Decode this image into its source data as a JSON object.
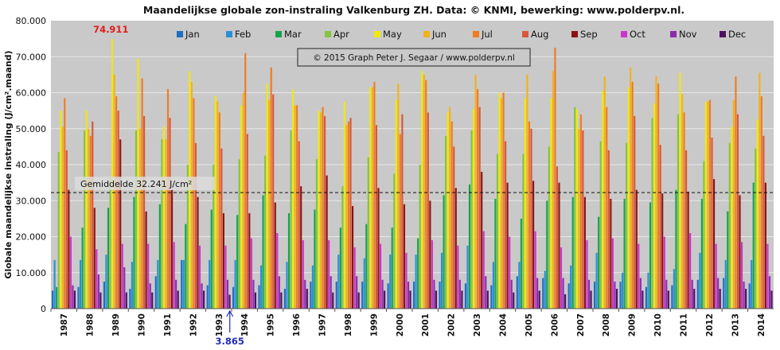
{
  "chart_data": {
    "type": "bar",
    "title": "Maandelijkse  globale  zon-instraling  Valkenburg  ZH.  Data:  © KNMI,  bewerking:  www.polderpv.nl.",
    "ylabel": "Globale maandelijkse instraling (J/cm².maand)",
    "xlabel": "",
    "ylim": [
      0,
      80000
    ],
    "yticks": [
      "0",
      "10.000",
      "20.000",
      "30.000",
      "40.000",
      "50.000",
      "60.000",
      "70.000",
      "80.000"
    ],
    "grid": true,
    "legend_position": "top",
    "copyright": "© 2015 Graph  Peter J. Segaar / www.polderpv.nl",
    "average": {
      "label": "Gemiddelde 32.241 J/cm²",
      "value": 32241
    },
    "max_annotation": {
      "label": "74.911",
      "year": "1989",
      "month": "May",
      "value": 74911
    },
    "min_annotation": {
      "label": "3.865",
      "year": "1993",
      "month": "Dec",
      "value": 3865
    },
    "categories": [
      "1987",
      "1988",
      "1989",
      "1990",
      "1991",
      "1992",
      "1993",
      "1994",
      "1995",
      "1996",
      "1997",
      "1998",
      "1999",
      "2000",
      "2001",
      "2002",
      "2003",
      "2004",
      "2005",
      "2006",
      "2007",
      "2008",
      "2009",
      "2010",
      "2011",
      "2012",
      "2013",
      "2014"
    ],
    "series": [
      {
        "name": "Jan",
        "color": "#1f6fc0",
        "values": [
          5000,
          6000,
          7500,
          5500,
          9000,
          13500,
          6500,
          6000,
          6500,
          5500,
          7500,
          7500,
          7500,
          7000,
          7500,
          7500,
          7000,
          6500,
          9000,
          8500,
          7000,
          7500,
          7500,
          6000,
          6500,
          8000,
          8500,
          7000
        ]
      },
      {
        "name": "Feb",
        "color": "#2a8fd8",
        "values": [
          13500,
          13500,
          15000,
          13000,
          13500,
          13500,
          13500,
          13500,
          12000,
          13000,
          12000,
          15000,
          14000,
          15000,
          15000,
          15500,
          17500,
          13000,
          13000,
          10500,
          12000,
          15500,
          10000,
          10000,
          11000,
          15500,
          13500,
          13500
        ]
      },
      {
        "name": "Mar",
        "color": "#16a34a",
        "values": [
          6000,
          22500,
          28000,
          31000,
          29000,
          23500,
          27500,
          26000,
          31500,
          26500,
          27500,
          22500,
          23500,
          22500,
          19500,
          31500,
          34500,
          30500,
          25000,
          30000,
          31000,
          25500,
          30500,
          29500,
          33000,
          30500,
          27000,
          35000
        ]
      },
      {
        "name": "Apr",
        "color": "#84c441",
        "values": [
          43500,
          49500,
          36500,
          49500,
          47000,
          40000,
          40000,
          41500,
          42500,
          49500,
          41500,
          34000,
          42000,
          37500,
          40000,
          48000,
          49500,
          43000,
          43000,
          45000,
          56000,
          46500,
          46000,
          53000,
          54000,
          41000,
          46000,
          44500
        ]
      },
      {
        "name": "May",
        "color": "#f2e80c",
        "values": [
          55000,
          55000,
          74911,
          69500,
          50500,
          66000,
          59000,
          56500,
          62500,
          61000,
          55000,
          57500,
          61500,
          58000,
          66000,
          54500,
          55500,
          60000,
          58500,
          58500,
          55500,
          60500,
          61500,
          57000,
          65500,
          57500,
          50500,
          52500
        ]
      },
      {
        "name": "Jun",
        "color": "#f2b21c",
        "values": [
          50500,
          50000,
          65000,
          50000,
          47000,
          63000,
          57500,
          60000,
          58000,
          56500,
          54500,
          51000,
          61500,
          62500,
          65000,
          56000,
          65000,
          58500,
          65000,
          66000,
          50000,
          64500,
          67000,
          64500,
          59500,
          57500,
          58000,
          65500
        ]
      },
      {
        "name": "Jul",
        "color": "#f07b22",
        "values": [
          58500,
          48000,
          59000,
          64000,
          61000,
          58500,
          54500,
          71000,
          67000,
          56500,
          56000,
          52000,
          63000,
          48500,
          63500,
          52000,
          61000,
          60000,
          52000,
          72500,
          54000,
          56000,
          63000,
          62500,
          54500,
          58000,
          64500,
          59000
        ]
      },
      {
        "name": "Aug",
        "color": "#d8573c",
        "values": [
          44000,
          52000,
          55000,
          53500,
          53000,
          46000,
          44500,
          48500,
          59500,
          46500,
          53500,
          53000,
          51000,
          54000,
          54500,
          45000,
          56000,
          46500,
          50000,
          39500,
          49500,
          44000,
          53500,
          45500,
          44000,
          47500,
          54000,
          48000
        ]
      },
      {
        "name": "Sep",
        "color": "#8a1414",
        "values": [
          33000,
          28000,
          47000,
          27000,
          33000,
          31000,
          26500,
          26500,
          29500,
          34000,
          37000,
          28500,
          33500,
          29000,
          30000,
          33500,
          38000,
          35000,
          35500,
          35000,
          31000,
          30500,
          33000,
          32000,
          32500,
          36000,
          31500,
          35000
        ]
      },
      {
        "name": "Oct",
        "color": "#cc33cc",
        "values": [
          20000,
          16500,
          18000,
          18000,
          18500,
          17500,
          17500,
          19500,
          21000,
          19000,
          19000,
          17000,
          18000,
          15500,
          19000,
          17500,
          21500,
          20000,
          21500,
          17000,
          19000,
          19500,
          18000,
          20000,
          21000,
          18000,
          18500,
          18000
        ]
      },
      {
        "name": "Nov",
        "color": "#8a2ea8",
        "values": [
          6500,
          9500,
          11500,
          7000,
          8000,
          7000,
          8000,
          8000,
          9000,
          8000,
          9000,
          9000,
          8000,
          7500,
          8000,
          8000,
          9000,
          8000,
          8500,
          8500,
          8000,
          7500,
          8500,
          8000,
          8000,
          8500,
          7500,
          9000
        ]
      },
      {
        "name": "Dec",
        "color": "#4f1060",
        "values": [
          5000,
          4500,
          4500,
          4500,
          5000,
          5000,
          3865,
          4500,
          4500,
          5500,
          4500,
          4500,
          5000,
          5000,
          5000,
          5000,
          5000,
          4500,
          5000,
          4000,
          5000,
          5500,
          5000,
          5000,
          5500,
          5500,
          5500,
          5000
        ]
      }
    ]
  }
}
